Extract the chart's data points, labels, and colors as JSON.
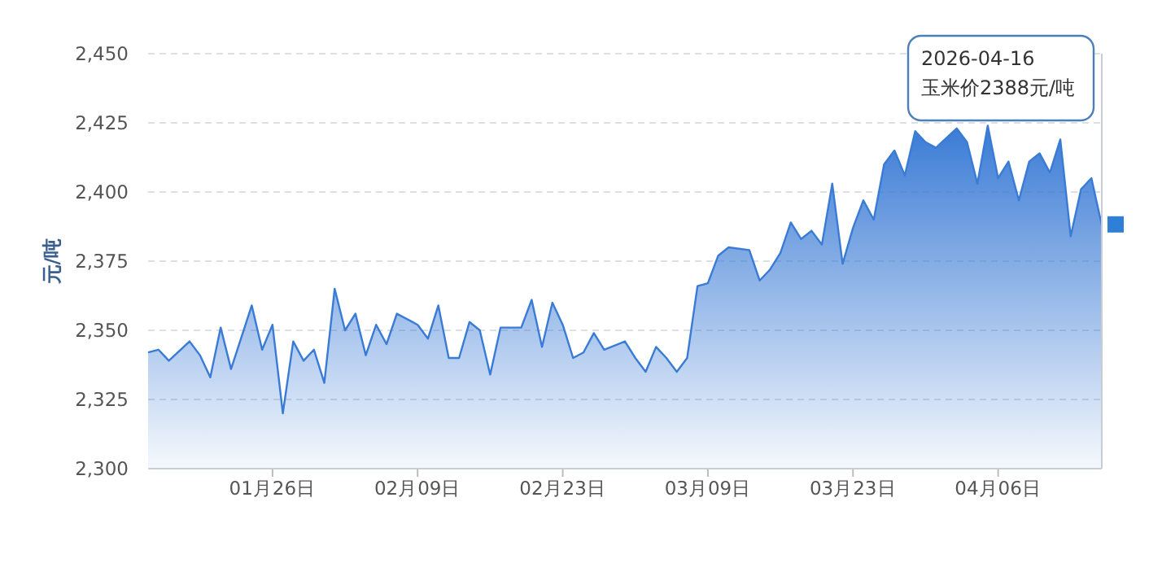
{
  "chart_data": {
    "type": "area",
    "ylabel": "元/吨",
    "x": [
      "2026-01-14",
      "2026-01-15",
      "2026-01-16",
      "2026-01-18",
      "2026-01-19",
      "2026-01-20",
      "2026-01-21",
      "2026-01-22",
      "2026-01-24",
      "2026-01-25",
      "2026-01-26",
      "2026-01-27",
      "2026-01-28",
      "2026-01-29",
      "2026-01-30",
      "2026-01-31",
      "2026-02-01",
      "2026-02-02",
      "2026-02-03",
      "2026-02-04",
      "2026-02-05",
      "2026-02-06",
      "2026-02-07",
      "2026-02-09",
      "2026-02-10",
      "2026-02-11",
      "2026-02-12",
      "2026-02-13",
      "2026-02-14",
      "2026-02-15",
      "2026-02-16",
      "2026-02-17",
      "2026-02-19",
      "2026-02-20",
      "2026-02-21",
      "2026-02-22",
      "2026-02-23",
      "2026-02-24",
      "2026-02-25",
      "2026-02-26",
      "2026-02-27",
      "2026-03-01",
      "2026-03-02",
      "2026-03-03",
      "2026-03-04",
      "2026-03-05",
      "2026-03-06",
      "2026-03-07",
      "2026-03-08",
      "2026-03-09",
      "2026-03-10",
      "2026-03-11",
      "2026-03-13",
      "2026-03-14",
      "2026-03-15",
      "2026-03-16",
      "2026-03-17",
      "2026-03-18",
      "2026-03-19",
      "2026-03-20",
      "2026-03-21",
      "2026-03-22",
      "2026-03-23",
      "2026-03-24",
      "2026-03-25",
      "2026-03-26",
      "2026-03-27",
      "2026-03-28",
      "2026-03-29",
      "2026-03-30",
      "2026-03-31",
      "2026-04-02",
      "2026-04-03",
      "2026-04-04",
      "2026-04-05",
      "2026-04-06",
      "2026-04-07",
      "2026-04-08",
      "2026-04-09",
      "2026-04-10",
      "2026-04-11",
      "2026-04-12",
      "2026-04-13",
      "2026-04-14",
      "2026-04-15",
      "2026-04-16"
    ],
    "series": [
      {
        "color": "#3a7bd5",
        "values": [
          2342,
          2343,
          2339,
          2346,
          2341,
          2333,
          2351,
          2336,
          2359,
          2343,
          2352,
          2320,
          2346,
          2339,
          2343,
          2331,
          2365,
          2350,
          2356,
          2341,
          2352,
          2345,
          2356,
          2352,
          2347,
          2359,
          2340,
          2340,
          2353,
          2350,
          2334,
          2351,
          2351,
          2361,
          2344,
          2360,
          2352,
          2340,
          2342,
          2349,
          2343,
          2346,
          2340,
          2335,
          2344,
          2340,
          2335,
          2340,
          2366,
          2367,
          2377,
          2380,
          2379,
          2368,
          2372,
          2378,
          2389,
          2383,
          2386,
          2381,
          2403,
          2374,
          2387,
          2397,
          2390,
          2410,
          2415,
          2406,
          2422,
          2418,
          2416,
          2423,
          2418,
          2403,
          2424,
          2405,
          2411,
          2397,
          2411,
          2414,
          2407,
          2419,
          2384,
          2401,
          2405,
          2388
        ]
      }
    ],
    "xlim": [
      "2026-01-14",
      "2026-04-16"
    ],
    "xticks": [
      {
        "value": "2026-01-26",
        "label": "01月26日"
      },
      {
        "value": "2026-02-09",
        "label": "02月09日"
      },
      {
        "value": "2026-02-23",
        "label": "02月23日"
      },
      {
        "value": "2026-03-09",
        "label": "03月09日"
      },
      {
        "value": "2026-03-23",
        "label": "03月23日"
      },
      {
        "value": "2026-04-06",
        "label": "04月06日"
      }
    ],
    "ylim": [
      2300,
      2450
    ],
    "yticks": [
      {
        "value": 2300,
        "label": "2,300"
      },
      {
        "value": 2325,
        "label": "2,325"
      },
      {
        "value": 2350,
        "label": "2,350"
      },
      {
        "value": 2375,
        "label": "2,375"
      },
      {
        "value": 2400,
        "label": "2,400"
      },
      {
        "value": 2425,
        "label": "2,425"
      },
      {
        "value": 2450,
        "label": "2,450"
      }
    ],
    "grid": "y",
    "annotations": [
      "2026-04-16\n玉米价2388元/吨"
    ]
  }
}
